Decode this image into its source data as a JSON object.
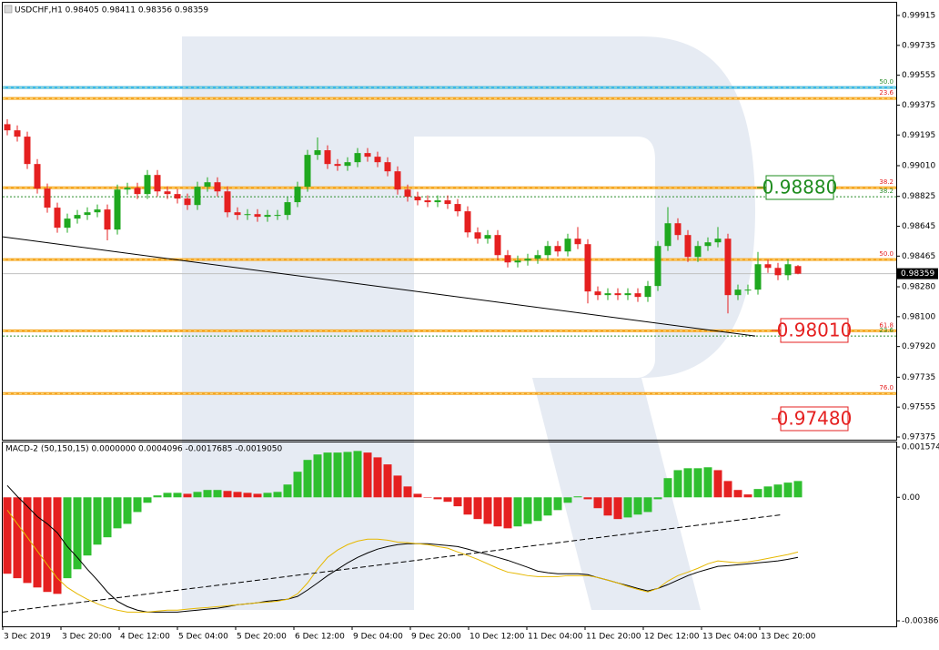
{
  "chart_data": [
    {
      "type": "candlestick",
      "title": "USDCHF,H1  0.98405 0.98411 0.98356 0.98359",
      "open": [
        0.9926,
        0.99223,
        0.99185,
        0.9902,
        0.98872,
        0.98757,
        0.98636,
        0.98691,
        0.98713,
        0.98729,
        0.98746,
        0.98625,
        0.98866,
        0.98877,
        0.98839,
        0.98954,
        0.98855,
        0.98839,
        0.98812,
        0.98773,
        0.98883,
        0.9891,
        0.98855,
        0.98729,
        0.98713,
        0.98718,
        0.98702,
        0.98713,
        0.98713,
        0.9879,
        0.98883,
        0.99075,
        0.99103,
        0.9902,
        0.99009,
        0.99031,
        0.99086,
        0.99064,
        0.99031,
        0.98976,
        0.98866,
        0.98823,
        0.98801,
        0.9879,
        0.98801,
        0.98779,
        0.98735,
        0.98608,
        0.9857,
        0.98592,
        0.98471,
        0.98427,
        0.98438,
        0.98449,
        0.98471,
        0.98526,
        0.98493,
        0.9857,
        0.98537,
        0.98252,
        0.9823,
        0.98241,
        0.9823,
        0.98241,
        0.98219,
        0.98285,
        0.98526,
        0.98663,
        0.98592,
        0.9846,
        0.98526,
        0.98548,
        0.9857,
        0.9823,
        0.98263,
        0.98263,
        0.98416,
        0.98394,
        0.9835,
        0.98405
      ],
      "high": [
        0.9929,
        0.99253,
        0.99215,
        0.9905,
        0.98902,
        0.98787,
        0.98721,
        0.98743,
        0.98759,
        0.98776,
        0.98776,
        0.98896,
        0.98907,
        0.98907,
        0.98984,
        0.98984,
        0.98885,
        0.98869,
        0.98842,
        0.98913,
        0.9894,
        0.9894,
        0.98885,
        0.98759,
        0.98748,
        0.98748,
        0.98743,
        0.98743,
        0.9882,
        0.98913,
        0.99105,
        0.9918,
        0.99133,
        0.9905,
        0.99061,
        0.99116,
        0.99116,
        0.99094,
        0.99061,
        0.99006,
        0.98896,
        0.98853,
        0.98831,
        0.98831,
        0.98831,
        0.98809,
        0.98765,
        0.98638,
        0.98622,
        0.98622,
        0.98501,
        0.98468,
        0.98479,
        0.98501,
        0.98556,
        0.98556,
        0.986,
        0.9864,
        0.98567,
        0.98282,
        0.98271,
        0.98271,
        0.98271,
        0.98271,
        0.98315,
        0.98556,
        0.9876,
        0.98693,
        0.98622,
        0.98556,
        0.98578,
        0.9864,
        0.986,
        0.98293,
        0.98293,
        0.9849,
        0.98446,
        0.98424,
        0.98446,
        0.98411
      ],
      "low": [
        0.99193,
        0.99155,
        0.9899,
        0.98842,
        0.98727,
        0.98606,
        0.98606,
        0.98661,
        0.98683,
        0.98699,
        0.9856,
        0.98595,
        0.98836,
        0.98809,
        0.98809,
        0.98825,
        0.98809,
        0.98782,
        0.98743,
        0.98743,
        0.98853,
        0.98825,
        0.98699,
        0.98683,
        0.98683,
        0.98672,
        0.98672,
        0.98683,
        0.98683,
        0.9876,
        0.98853,
        0.99045,
        0.9899,
        0.98979,
        0.98979,
        0.99001,
        0.99034,
        0.99001,
        0.98946,
        0.98836,
        0.98793,
        0.98771,
        0.9876,
        0.9876,
        0.98749,
        0.98705,
        0.98578,
        0.9854,
        0.9854,
        0.98441,
        0.98397,
        0.98397,
        0.98408,
        0.98419,
        0.98441,
        0.98463,
        0.98463,
        0.98507,
        0.9818,
        0.982,
        0.982,
        0.982,
        0.982,
        0.98189,
        0.98189,
        0.98255,
        0.98496,
        0.98562,
        0.9843,
        0.9843,
        0.98496,
        0.98518,
        0.9812,
        0.982,
        0.98233,
        0.98233,
        0.98364,
        0.9832,
        0.9832,
        0.98356
      ],
      "close": [
        0.99223,
        0.99185,
        0.9902,
        0.98872,
        0.98757,
        0.98636,
        0.98691,
        0.98713,
        0.98729,
        0.98746,
        0.98625,
        0.98866,
        0.98877,
        0.98839,
        0.98954,
        0.98855,
        0.98839,
        0.98812,
        0.98773,
        0.98883,
        0.9891,
        0.98855,
        0.98729,
        0.98713,
        0.98718,
        0.98702,
        0.98713,
        0.98713,
        0.9879,
        0.98883,
        0.99075,
        0.99103,
        0.9902,
        0.99009,
        0.99031,
        0.99086,
        0.99064,
        0.99031,
        0.98976,
        0.98866,
        0.98823,
        0.98801,
        0.9879,
        0.98801,
        0.98779,
        0.98735,
        0.98608,
        0.9857,
        0.98592,
        0.98471,
        0.98427,
        0.98438,
        0.98449,
        0.98471,
        0.98526,
        0.98493,
        0.9857,
        0.98537,
        0.98252,
        0.9823,
        0.98241,
        0.9823,
        0.98241,
        0.98219,
        0.98285,
        0.98526,
        0.98663,
        0.98592,
        0.9846,
        0.98526,
        0.98548,
        0.9857,
        0.9823,
        0.98263,
        0.98263,
        0.98416,
        0.98394,
        0.9835,
        0.98416,
        0.98359
      ],
      "up_color": "#1fa81f",
      "down_color": "#e52020",
      "ylim": [
        0.97364,
        0.99981
      ],
      "yticks": [
        0.99915,
        0.99735,
        0.99555,
        0.99375,
        0.99195,
        {
          "value": 0.9901,
          "label": "0.99010"
        },
        0.98825,
        0.98645,
        0.98465,
        {
          "value": 0.9828,
          "label": "0.98280"
        },
        {
          "value": 0.981,
          "label": "0.98100"
        },
        {
          "value": 0.9792,
          "label": "0.97920"
        },
        0.97735,
        0.97555,
        0.97375
      ],
      "last_price": 0.98359,
      "levels": [
        {
          "label": "50.0",
          "value": 0.99481,
          "color": "#3cb9e6",
          "label_color": "#2f8f2f",
          "style": "solid"
        },
        {
          "label": "23.6",
          "value": 0.99415,
          "color": "#f5a623",
          "label_color": "#e52020",
          "style": "solid"
        },
        {
          "label": "38.2",
          "value": 0.98877,
          "color": "#f5a623",
          "label_color": "#e52020",
          "style": "solid"
        },
        {
          "label": "38.2",
          "value": 0.98823,
          "color": "#2f8f2f",
          "label_color": "#2f8f2f",
          "style": "dotted"
        },
        {
          "label": "50.0",
          "value": 0.98444,
          "color": "#f5a623",
          "label_color": "#e52020",
          "style": "solid"
        },
        {
          "label": "61.8",
          "value": 0.98015,
          "color": "#f5a623",
          "label_color": "#e52020",
          "style": "solid"
        },
        {
          "label": "23.6",
          "value": 0.97983,
          "color": "#2f8f2f",
          "label_color": "#2f8f2f",
          "style": "dotted"
        },
        {
          "label": "76.0",
          "value": 0.97637,
          "color": "#f5a623",
          "label_color": "#e52020",
          "style": "solid"
        }
      ],
      "annotations": [
        {
          "text": "0.98880",
          "color": "#1e8c1e"
        },
        {
          "text": "0.98010",
          "color": "#e52020"
        },
        {
          "text": "0.97480",
          "color": "#e52020"
        }
      ],
      "trendline": [
        0.98581,
        0.97983
      ],
      "x_labels": [
        "3 Dec 2019",
        "3 Dec 20:00",
        "4 Dec 12:00",
        "5 Dec 04:00",
        "5 Dec 20:00",
        "6 Dec 12:00",
        "9 Dec 04:00",
        "9 Dec 20:00",
        "10 Dec 12:00",
        "11 Dec 04:00",
        "11 Dec 20:00",
        "12 Dec 12:00",
        "13 Dec 04:00",
        "13 Dec 20:00"
      ]
    },
    {
      "type": "macd",
      "title": "MACD-2 (50,150,15) 0.0000000 0.0004096 -0.0017685 -0.0019050",
      "values": [
        -0.00239,
        -0.00253,
        -0.00268,
        -0.00282,
        -0.00296,
        -0.00302,
        -0.00253,
        -0.00225,
        -0.00182,
        -0.00148,
        -0.00125,
        -0.00097,
        -0.00083,
        -0.00046,
        -0.00017,
        6e-05,
        0.00014,
        0.00014,
        0.00011,
        0.00017,
        0.00023,
        0.00023,
        0.0002,
        0.00017,
        0.00014,
        0.00011,
        0.00014,
        0.00017,
        0.0004,
        0.0008,
        0.00117,
        0.00134,
        0.0014,
        0.0014,
        0.00142,
        0.00145,
        0.0014,
        0.00125,
        0.00103,
        0.00068,
        0.00034,
        0.00011,
        0,
        -6e-05,
        -0.00014,
        -0.00028,
        -0.00054,
        -0.00068,
        -0.00083,
        -0.00091,
        -0.00097,
        -0.00091,
        -0.00083,
        -0.00074,
        -0.00057,
        -0.0004,
        -0.00017,
        3e-05,
        -6e-05,
        -0.00034,
        -0.00057,
        -0.00068,
        -0.00063,
        -0.00054,
        -0.00046,
        -6e-05,
        0.0006,
        0.00085,
        0.00091,
        0.00091,
        0.00094,
        0.00085,
        0.00051,
        0.00023,
        9e-05,
        0.00026,
        0.00034,
        0.0004,
        0.00046,
        0.00051
      ],
      "up_color": "#2fbf2f",
      "down_color": "#e52020",
      "series": [
        {
          "color": "#000000",
          "values": [
            0.00037,
            3e-05,
            -0.00028,
            -0.0006,
            -0.00083,
            -0.00111,
            -0.00154,
            -0.00188,
            -0.00225,
            -0.00259,
            -0.00296,
            -0.00325,
            -0.00342,
            -0.00353,
            -0.00359,
            -0.00359,
            -0.00359,
            -0.00359,
            -0.00356,
            -0.00353,
            -0.0035,
            -0.00347,
            -0.00342,
            -0.00336,
            -0.00333,
            -0.0033,
            -0.00325,
            -0.00322,
            -0.00319,
            -0.0031,
            -0.0029,
            -0.00268,
            -0.00245,
            -0.00225,
            -0.00205,
            -0.00188,
            -0.00174,
            -0.00162,
            -0.00154,
            -0.00148,
            -0.00145,
            -0.00145,
            -0.00145,
            -0.00148,
            -0.00151,
            -0.00154,
            -0.00162,
            -0.00171,
            -0.00179,
            -0.00188,
            -0.00197,
            -0.00208,
            -0.00219,
            -0.00231,
            -0.00236,
            -0.00239,
            -0.00239,
            -0.00239,
            -0.00242,
            -0.00251,
            -0.00259,
            -0.00268,
            -0.00276,
            -0.00285,
            -0.00293,
            -0.00285,
            -0.00273,
            -0.00259,
            -0.00245,
            -0.00234,
            -0.00225,
            -0.00216,
            -0.00214,
            -0.00211,
            -0.00208,
            -0.00205,
            -0.00202,
            -0.00199,
            -0.00194,
            -0.00188
          ]
        },
        {
          "color": "#e6b800",
          "values": [
            -0.0004,
            -0.00083,
            -0.00125,
            -0.00168,
            -0.00211,
            -0.00253,
            -0.00282,
            -0.00302,
            -0.00319,
            -0.00333,
            -0.00345,
            -0.00353,
            -0.00359,
            -0.00359,
            -0.00359,
            -0.00356,
            -0.00353,
            -0.00353,
            -0.0035,
            -0.00347,
            -0.00345,
            -0.00342,
            -0.00339,
            -0.00336,
            -0.00333,
            -0.0033,
            -0.00328,
            -0.00325,
            -0.00319,
            -0.00302,
            -0.00268,
            -0.00225,
            -0.00188,
            -0.00165,
            -0.00148,
            -0.00137,
            -0.00131,
            -0.00131,
            -0.00134,
            -0.0014,
            -0.00142,
            -0.00145,
            -0.00148,
            -0.00154,
            -0.00159,
            -0.00171,
            -0.00182,
            -0.00194,
            -0.00208,
            -0.00222,
            -0.00234,
            -0.00239,
            -0.00245,
            -0.00248,
            -0.00248,
            -0.00248,
            -0.00245,
            -0.00245,
            -0.00245,
            -0.00251,
            -0.00259,
            -0.00268,
            -0.00279,
            -0.00288,
            -0.00296,
            -0.00285,
            -0.00262,
            -0.00245,
            -0.00234,
            -0.00222,
            -0.00208,
            -0.00199,
            -0.00202,
            -0.00205,
            -0.00202,
            -0.00197,
            -0.00191,
            -0.00185,
            -0.00179,
            -0.00171
          ]
        }
      ],
      "ylim": [
        -0.003865,
        0.0015744
      ],
      "yticks": [
        0.0015744,
        {
          "value": 0,
          "label": "0.00"
        },
        -0.003865
      ],
      "trendline": [
        -0.00359,
        -0.00054
      ]
    }
  ]
}
